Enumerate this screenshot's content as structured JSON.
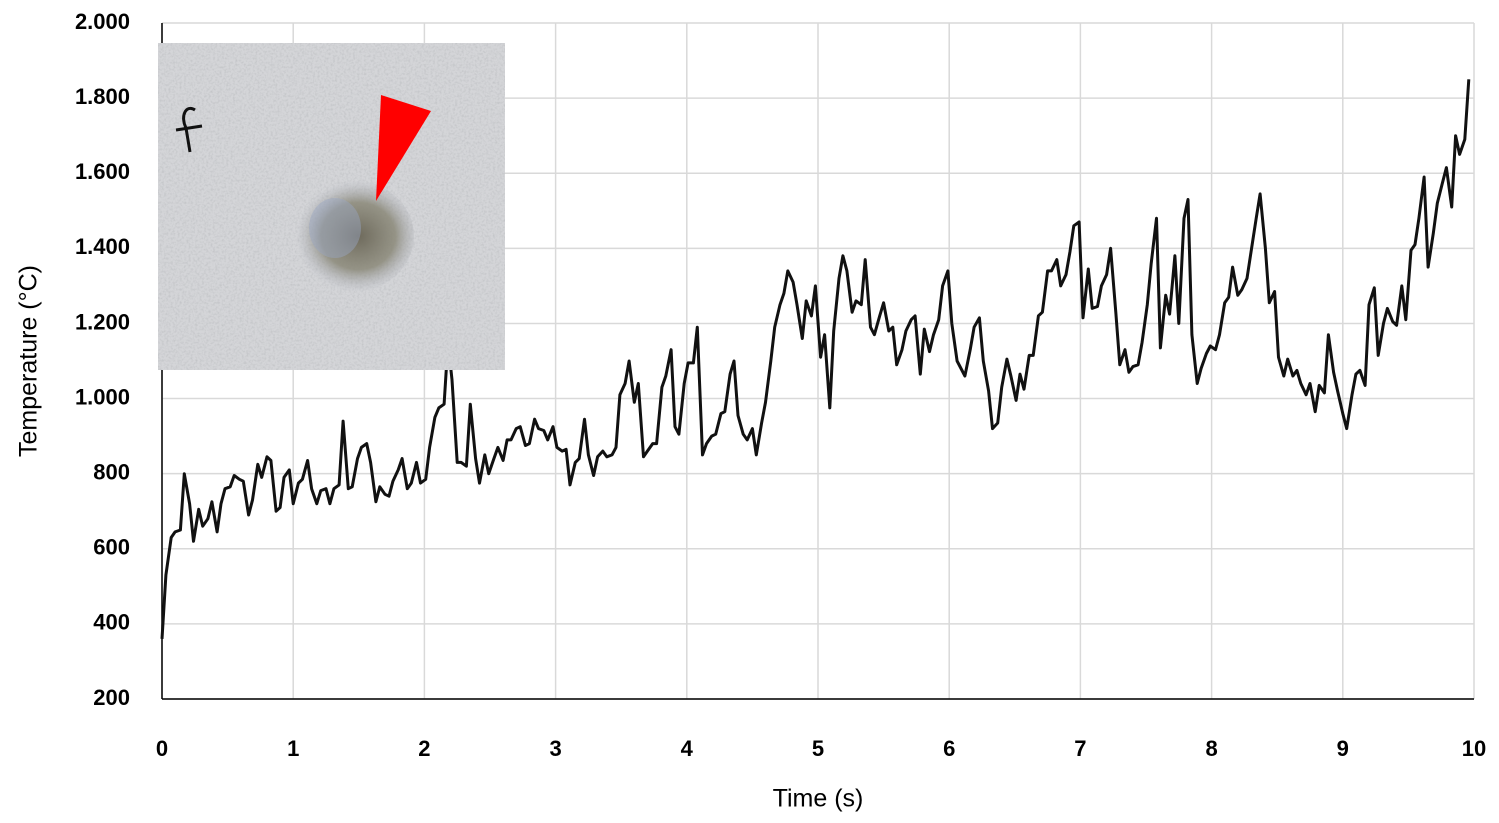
{
  "chart_data": {
    "type": "line",
    "xlabel": "Time (s)",
    "ylabel": "Temperature (°C)",
    "xlim": [
      0,
      10
    ],
    "xticks": [
      0,
      1,
      2,
      3,
      4,
      5,
      6,
      7,
      8,
      9,
      10
    ],
    "ylim": [
      200,
      2000
    ],
    "yticks": [
      {
        "value": 200,
        "label": "200"
      },
      {
        "value": 400,
        "label": "400"
      },
      {
        "value": 600,
        "label": "600"
      },
      {
        "value": 800,
        "label": "800"
      },
      {
        "value": 1000,
        "label": "1.000"
      },
      {
        "value": 1200,
        "label": "1.200"
      },
      {
        "value": 1400,
        "label": "1.400"
      },
      {
        "value": 1600,
        "label": "1.600"
      },
      {
        "value": 1800,
        "label": "1.800"
      },
      {
        "value": 2000,
        "label": "2.000"
      }
    ],
    "grid": true,
    "color": "#111111",
    "x": [
      0,
      0.03,
      0.07,
      0.1,
      0.14,
      0.17,
      0.21,
      0.24,
      0.28,
      0.31,
      0.35,
      0.38,
      0.42,
      0.45,
      0.48,
      0.52,
      0.55,
      0.59,
      0.62,
      0.66,
      0.69,
      0.73,
      0.76,
      0.8,
      0.83,
      0.87,
      0.9,
      0.93,
      0.97,
      1.0,
      1.04,
      1.07,
      1.11,
      1.14,
      1.18,
      1.21,
      1.25,
      1.28,
      1.31,
      1.35,
      1.38,
      1.42,
      1.45,
      1.49,
      1.52,
      1.56,
      1.59,
      1.63,
      1.66,
      1.7,
      1.73,
      1.76,
      1.8,
      1.83,
      1.87,
      1.9,
      1.94,
      1.97,
      2.01,
      2.04,
      2.08,
      2.11,
      2.15,
      2.18,
      2.21,
      2.25,
      2.28,
      2.32,
      2.35,
      2.39,
      2.42,
      2.46,
      2.49,
      2.53,
      2.56,
      2.6,
      2.63,
      2.66,
      2.7,
      2.73,
      2.77,
      2.8,
      2.84,
      2.87,
      2.91,
      2.94,
      2.98,
      3.01,
      3.05,
      3.08,
      3.11,
      3.15,
      3.18,
      3.22,
      3.25,
      3.29,
      3.32,
      3.36,
      3.39,
      3.43,
      3.46,
      3.49,
      3.53,
      3.56,
      3.6,
      3.63,
      3.67,
      3.7,
      3.74,
      3.77,
      3.81,
      3.84,
      3.88,
      3.91,
      3.94,
      3.98,
      4.01,
      4.05,
      4.08,
      4.12,
      4.15,
      4.19,
      4.22,
      4.26,
      4.29,
      4.33,
      4.36,
      4.39,
      4.43,
      4.46,
      4.5,
      4.53,
      4.57,
      4.6,
      4.64,
      4.67,
      4.71,
      4.74,
      4.77,
      4.81,
      4.84,
      4.88,
      4.91,
      4.95,
      4.98,
      5.02,
      5.05,
      5.09,
      5.12,
      5.16,
      5.19,
      5.22,
      5.26,
      5.29,
      5.33,
      5.36,
      5.4,
      5.43,
      5.47,
      5.5,
      5.54,
      5.57,
      5.6,
      5.64,
      5.67,
      5.71,
      5.74,
      5.78,
      5.81,
      5.85,
      5.88,
      5.92,
      5.95,
      5.99,
      6.02,
      6.06,
      6.09,
      6.12,
      6.16,
      6.19,
      6.23,
      6.26,
      6.3,
      6.33,
      6.37,
      6.4,
      6.44,
      6.47,
      6.51,
      6.54,
      6.57,
      6.61,
      6.64,
      6.68,
      6.71,
      6.75,
      6.78,
      6.82,
      6.85,
      6.89,
      6.92,
      6.95,
      6.99,
      7.02,
      7.06,
      7.09,
      7.13,
      7.16,
      7.2,
      7.23,
      7.27,
      7.3,
      7.34,
      7.37,
      7.4,
      7.44,
      7.47,
      7.51,
      7.54,
      7.58,
      7.61,
      7.65,
      7.68,
      7.72,
      7.75,
      7.79,
      7.82,
      7.85,
      7.89,
      7.92,
      7.96,
      7.99,
      8.03,
      8.06,
      8.1,
      8.13,
      8.16,
      8.2,
      8.23,
      8.27,
      8.3,
      8.34,
      8.37,
      8.41,
      8.44,
      8.48,
      8.51,
      8.55,
      8.58,
      8.62,
      8.65,
      8.68,
      8.72,
      8.75,
      8.79,
      8.82,
      8.86,
      8.89,
      8.93,
      8.96,
      9.0,
      9.03,
      9.07,
      9.1,
      9.13,
      9.17,
      9.2,
      9.24,
      9.27,
      9.31,
      9.34,
      9.38,
      9.41,
      9.45,
      9.48,
      9.52,
      9.55,
      9.58,
      9.62,
      9.65,
      9.69,
      9.72,
      9.76,
      9.79,
      9.83,
      9.86,
      9.89,
      9.93,
      9.96
    ],
    "values": [
      360,
      530,
      630,
      645,
      650,
      800,
      720,
      620,
      705,
      660,
      680,
      725,
      645,
      720,
      760,
      765,
      795,
      785,
      780,
      690,
      730,
      825,
      790,
      845,
      835,
      700,
      710,
      790,
      810,
      720,
      775,
      785,
      835,
      760,
      720,
      755,
      760,
      720,
      760,
      770,
      940,
      760,
      765,
      840,
      870,
      880,
      830,
      725,
      765,
      745,
      740,
      780,
      810,
      840,
      760,
      775,
      830,
      775,
      785,
      870,
      950,
      975,
      985,
      1150,
      1050,
      830,
      830,
      820,
      985,
      840,
      775,
      850,
      800,
      840,
      870,
      835,
      890,
      890,
      920,
      925,
      875,
      880,
      945,
      920,
      915,
      890,
      925,
      870,
      860,
      865,
      770,
      830,
      840,
      945,
      850,
      795,
      845,
      860,
      845,
      850,
      870,
      1010,
      1040,
      1100,
      990,
      1040,
      845,
      860,
      880,
      880,
      1030,
      1060,
      1130,
      925,
      905,
      1040,
      1095,
      1095,
      1190,
      850,
      880,
      900,
      905,
      960,
      965,
      1065,
      1100,
      955,
      905,
      890,
      920,
      850,
      935,
      990,
      1100,
      1190,
      1250,
      1280,
      1340,
      1310,
      1250,
      1160,
      1260,
      1220,
      1300,
      1110,
      1170,
      975,
      1180,
      1320,
      1380,
      1340,
      1230,
      1260,
      1250,
      1370,
      1190,
      1170,
      1220,
      1255,
      1180,
      1190,
      1090,
      1130,
      1180,
      1210,
      1220,
      1065,
      1185,
      1125,
      1170,
      1210,
      1300,
      1340,
      1200,
      1100,
      1080,
      1060,
      1130,
      1190,
      1215,
      1100,
      1020,
      920,
      935,
      1030,
      1105,
      1060,
      995,
      1065,
      1025,
      1115,
      1115,
      1220,
      1230,
      1340,
      1340,
      1370,
      1300,
      1330,
      1390,
      1460,
      1470,
      1215,
      1345,
      1240,
      1245,
      1300,
      1330,
      1400,
      1230,
      1090,
      1130,
      1070,
      1085,
      1090,
      1150,
      1250,
      1360,
      1480,
      1135,
      1275,
      1225,
      1380,
      1200,
      1480,
      1530,
      1170,
      1040,
      1080,
      1120,
      1140,
      1130,
      1170,
      1255,
      1270,
      1350,
      1275,
      1290,
      1320,
      1390,
      1480,
      1545,
      1400,
      1255,
      1285,
      1110,
      1060,
      1105,
      1060,
      1075,
      1040,
      1010,
      1040,
      965,
      1035,
      1015,
      1170,
      1070,
      1020,
      960,
      920,
      1010,
      1065,
      1075,
      1035,
      1250,
      1295,
      1115,
      1200,
      1240,
      1205,
      1195,
      1300,
      1210,
      1395,
      1410,
      1480,
      1590,
      1350,
      1440,
      1520,
      1575,
      1615,
      1510,
      1700,
      1650,
      1690,
      1850
    ]
  }
}
